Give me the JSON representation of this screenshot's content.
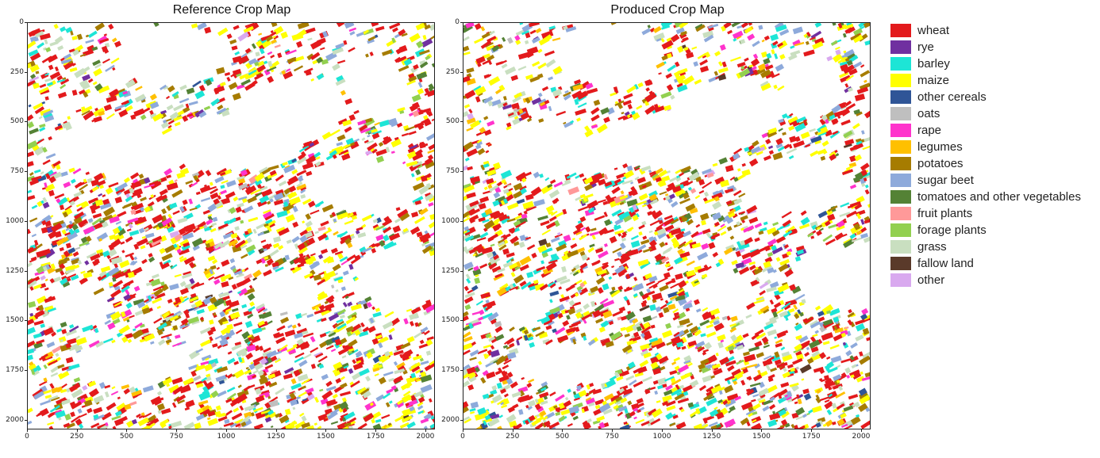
{
  "panels": [
    {
      "title": "Reference Crop Map",
      "seed": 17
    },
    {
      "title": "Produced Crop Map",
      "seed": 91
    }
  ],
  "axes": {
    "yticks": [
      "0",
      "250",
      "500",
      "750",
      "1000",
      "1250",
      "1500",
      "1750",
      "2000"
    ],
    "xticks": [
      "0",
      "250",
      "500",
      "750",
      "1000",
      "1250",
      "1500",
      "1750",
      "2000"
    ],
    "extent": 2048
  },
  "legend": [
    {
      "label": "wheat",
      "color": "#e31a1c"
    },
    {
      "label": "rye",
      "color": "#7030a0"
    },
    {
      "label": "barley",
      "color": "#1de5d6"
    },
    {
      "label": "maize",
      "color": "#ffff00"
    },
    {
      "label": "other cereals",
      "color": "#2f5597"
    },
    {
      "label": "oats",
      "color": "#bfbfbf"
    },
    {
      "label": "rape",
      "color": "#ff33cc"
    },
    {
      "label": "legumes",
      "color": "#ffc000"
    },
    {
      "label": "potatoes",
      "color": "#a67c00"
    },
    {
      "label": "sugar beet",
      "color": "#8eaadb"
    },
    {
      "label": "tomatoes and other vegetables",
      "color": "#548235"
    },
    {
      "label": "fruit plants",
      "color": "#ff9999"
    },
    {
      "label": "forage plants",
      "color": "#92d050"
    },
    {
      "label": "grass",
      "color": "#c9dfc0"
    },
    {
      "label": "fallow land",
      "color": "#5a3a2a"
    },
    {
      "label": "other",
      "color": "#d9a9ef"
    }
  ]
}
